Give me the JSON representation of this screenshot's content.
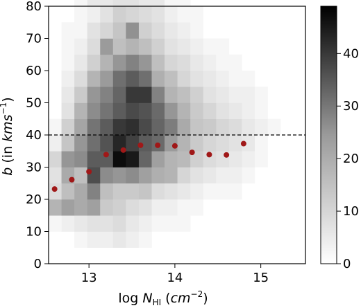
{
  "chart_data": {
    "type": "heatmap",
    "title": "",
    "xlabel": {
      "prefix": "log ",
      "var": "N",
      "sub": "HI",
      "unit_open": " (",
      "unit": "cm",
      "unit_exp": "−2",
      "unit_close": ")"
    },
    "ylabel": {
      "var": "b",
      "text": " (in ",
      "unit": "kms",
      "unit_exp": "−1",
      "close": ")"
    },
    "xlim": [
      12.53,
      15.52
    ],
    "ylim": [
      0,
      80
    ],
    "xticks": [
      13,
      14,
      15
    ],
    "yticks": [
      0,
      10,
      20,
      30,
      40,
      50,
      60,
      70,
      80
    ],
    "colorbar": {
      "range": [
        0,
        49
      ],
      "ticks": [
        0,
        10,
        20,
        30,
        40
      ],
      "colormap": "Greys"
    },
    "grid": false,
    "heatmap": {
      "x_start": 12.53,
      "x_bin": 0.15,
      "y_start": 5,
      "y_bin": 5,
      "note": "rows ordered from low b to high b; counts per bin",
      "counts": [
        [
          0,
          0,
          1,
          2,
          2,
          3,
          2,
          1,
          0,
          0,
          0,
          0,
          0,
          0,
          0,
          0,
          0,
          0,
          0,
          0
        ],
        [
          1,
          2,
          3,
          4,
          4,
          5,
          3,
          2,
          1,
          1,
          1,
          0,
          0,
          0,
          0,
          0,
          0,
          0,
          0,
          0
        ],
        [
          12,
          16,
          14,
          16,
          8,
          7,
          5,
          4,
          2,
          2,
          1,
          1,
          0,
          0,
          0,
          0,
          0,
          0,
          0,
          0
        ],
        [
          5,
          10,
          14,
          22,
          10,
          8,
          8,
          9,
          5,
          4,
          3,
          2,
          1,
          1,
          1,
          0,
          0,
          0,
          0,
          0
        ],
        [
          4,
          14,
          10,
          33,
          20,
          18,
          20,
          16,
          13,
          12,
          6,
          4,
          3,
          2,
          2,
          1,
          0,
          0,
          0,
          0
        ],
        [
          6,
          18,
          20,
          30,
          30,
          48,
          45,
          28,
          16,
          12,
          11,
          7,
          5,
          4,
          3,
          2,
          1,
          0,
          0,
          0
        ],
        [
          2,
          9,
          18,
          26,
          32,
          42,
          36,
          30,
          27,
          17,
          12,
          8,
          6,
          5,
          4,
          3,
          1,
          0,
          0,
          0
        ],
        [
          1,
          7,
          15,
          25,
          30,
          38,
          40,
          34,
          28,
          23,
          14,
          9,
          8,
          6,
          5,
          3,
          2,
          1,
          0,
          0
        ],
        [
          0,
          4,
          12,
          20,
          25,
          30,
          34,
          32,
          27,
          18,
          12,
          8,
          6,
          4,
          3,
          2,
          1,
          0,
          0,
          0
        ],
        [
          0,
          3,
          8,
          18,
          22,
          28,
          38,
          38,
          22,
          12,
          10,
          7,
          4,
          3,
          2,
          2,
          1,
          0,
          0,
          0
        ],
        [
          0,
          2,
          5,
          12,
          17,
          26,
          30,
          26,
          13,
          10,
          6,
          4,
          3,
          2,
          1,
          1,
          0,
          0,
          0,
          0
        ],
        [
          0,
          1,
          3,
          7,
          12,
          18,
          22,
          18,
          10,
          6,
          5,
          3,
          2,
          1,
          1,
          0,
          0,
          0,
          0,
          0
        ],
        [
          0,
          1,
          2,
          5,
          17,
          10,
          12,
          10,
          7,
          4,
          3,
          2,
          1,
          1,
          0,
          0,
          0,
          0,
          0,
          0
        ],
        [
          0,
          1,
          1,
          4,
          6,
          9,
          19,
          7,
          5,
          3,
          2,
          1,
          0,
          0,
          0,
          0,
          0,
          0,
          0,
          0
        ],
        [
          0,
          0,
          1,
          2,
          4,
          7,
          6,
          5,
          4,
          2,
          1,
          1,
          0,
          0,
          0,
          0,
          0,
          0,
          0,
          0
        ],
        [
          0,
          0,
          1,
          3,
          3,
          4,
          4,
          3,
          3,
          1,
          1,
          0,
          0,
          0,
          0,
          0,
          0,
          0,
          0,
          0
        ],
        [
          0,
          0,
          1,
          2,
          2,
          3,
          3,
          2,
          2,
          1,
          0,
          0,
          0,
          0,
          0,
          0,
          0,
          0,
          0,
          0
        ],
        [
          0,
          0,
          3,
          4,
          1,
          2,
          2,
          2,
          1,
          0,
          0,
          0,
          0,
          0,
          0,
          0,
          0,
          0,
          0,
          0
        ],
        [
          0,
          0,
          5,
          6,
          1,
          1,
          1,
          1,
          0,
          0,
          0,
          0,
          0,
          0,
          0,
          0,
          0,
          0,
          0,
          0
        ]
      ]
    },
    "series": [
      {
        "type": "scatter",
        "color": "#a01818",
        "x": [
          12.6,
          12.8,
          13.0,
          13.2,
          13.4,
          13.6,
          13.8,
          14.0,
          14.2,
          14.4,
          14.6,
          14.8
        ],
        "y": [
          23.2,
          26.1,
          28.6,
          33.9,
          35.3,
          36.8,
          36.8,
          36.6,
          34.6,
          33.9,
          33.8,
          37.3
        ]
      }
    ],
    "reference_line": {
      "y": 40,
      "style": "dashed",
      "color": "#000000"
    }
  }
}
